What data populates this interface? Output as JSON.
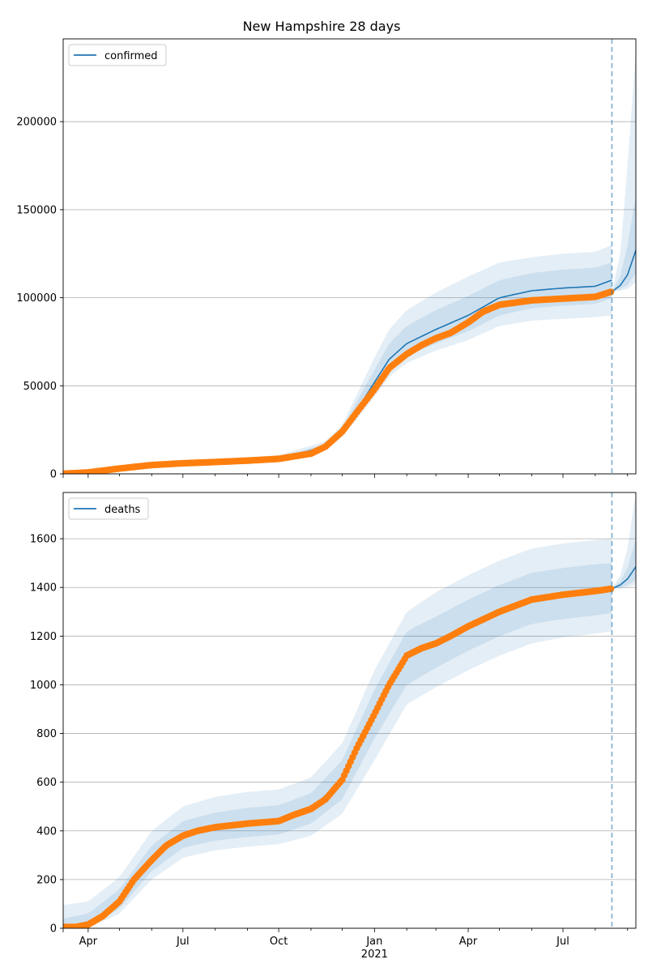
{
  "figure": {
    "title": "New Hampshire 28 days"
  },
  "chart_data": [
    {
      "type": "line",
      "legend": {
        "label": "confirmed",
        "placement": "top-left"
      },
      "xlim": [
        "2020-03-08",
        "2021-09-09"
      ],
      "ylim": [
        0,
        247000
      ],
      "yticks": [
        0,
        50000,
        100000,
        150000,
        200000
      ],
      "ytick_labels": [
        "0",
        "50000",
        "100000",
        "150000",
        "200000"
      ],
      "grid": "y",
      "forecast_start": "2021-08-17",
      "colors": {
        "line": "#1f77b4",
        "band": "#1f77b4",
        "observed": "#ff7f0e",
        "forecast_marker": "#1f77b4"
      },
      "observed": {
        "x": [
          "2020-03-08",
          "2020-04-01",
          "2020-05-01",
          "2020-06-01",
          "2020-07-01",
          "2020-08-01",
          "2020-09-01",
          "2020-10-01",
          "2020-11-01",
          "2020-11-15",
          "2020-12-01",
          "2020-12-15",
          "2021-01-01",
          "2021-01-15",
          "2021-02-01",
          "2021-02-15",
          "2021-03-01",
          "2021-03-15",
          "2021-04-01",
          "2021-04-15",
          "2021-05-01",
          "2021-06-01",
          "2021-07-01",
          "2021-08-01",
          "2021-08-17"
        ],
        "y": [
          100,
          800,
          3000,
          5000,
          6000,
          6700,
          7500,
          8500,
          11500,
          15500,
          24000,
          35000,
          48000,
          60000,
          68000,
          73000,
          77000,
          80000,
          86000,
          92000,
          96000,
          98500,
          99500,
          100500,
          103500
        ]
      },
      "model": {
        "x": [
          "2020-03-08",
          "2020-06-01",
          "2020-10-01",
          "2020-11-15",
          "2020-12-01",
          "2020-12-15",
          "2021-01-01",
          "2021-01-15",
          "2021-02-01",
          "2021-03-01",
          "2021-04-01",
          "2021-05-01",
          "2021-06-01",
          "2021-07-01",
          "2021-08-01",
          "2021-08-17"
        ],
        "y": [
          100,
          5000,
          8500,
          15500,
          24000,
          36000,
          52000,
          65000,
          74000,
          82000,
          90000,
          100000,
          104000,
          105500,
          106500,
          110000
        ],
        "bands": [
          {
            "lower": [
              0,
              4000,
              7500,
              14000,
              21000,
              31000,
              44000,
              55000,
              63000,
              70000,
              76000,
              84000,
              87000,
              88000,
              89000,
              90000
            ],
            "upper": [
              300,
              6500,
              10500,
              18500,
              28000,
              45000,
              66000,
              82000,
              93000,
              103000,
              112000,
              120000,
              123000,
              125000,
              126000,
              130000
            ]
          },
          {
            "lower": [
              0,
              4500,
              8000,
              14500,
              22000,
              33000,
              47000,
              58000,
              67000,
              74000,
              81000,
              90000,
              94000,
              95500,
              96500,
              100000
            ],
            "upper": [
              200,
              5700,
              9400,
              17000,
              26000,
              41000,
              59000,
              74000,
              84000,
              93000,
              101000,
              110000,
              114000,
              116000,
              117000,
              120000
            ]
          }
        ]
      },
      "forecast": {
        "x": [
          "2021-08-17",
          "2021-08-25",
          "2021-09-01",
          "2021-09-09"
        ],
        "y": [
          103500,
          107000,
          113000,
          127000
        ],
        "bands": [
          {
            "lower": [
              103500,
              104000,
              105000,
              109000
            ],
            "upper": [
              103500,
              125000,
              175000,
              240000
            ]
          },
          {
            "lower": [
              103500,
              105000,
              107000,
              114000
            ],
            "upper": [
              103500,
              112000,
              130000,
              158000
            ]
          }
        ]
      }
    },
    {
      "type": "line",
      "legend": {
        "label": "deaths",
        "placement": "top-left"
      },
      "xlim": [
        "2020-03-08",
        "2021-09-09"
      ],
      "ylim": [
        0,
        1790
      ],
      "yticks": [
        0,
        200,
        400,
        600,
        800,
        1000,
        1200,
        1400,
        1600
      ],
      "ytick_labels": [
        "0",
        "200",
        "400",
        "600",
        "800",
        "1000",
        "1200",
        "1400",
        "1600"
      ],
      "xticks": [
        "2020-04-01",
        "2020-07-01",
        "2020-10-01",
        "2021-01-01",
        "2021-04-01",
        "2021-07-01"
      ],
      "xtick_labels": [
        "Apr",
        "Jul",
        "Oct",
        "Jan",
        "Apr",
        "Jul"
      ],
      "xtick_year_label": "2021",
      "grid": "y",
      "forecast_start": "2021-08-17",
      "colors": {
        "line": "#1f77b4",
        "band": "#1f77b4",
        "observed": "#ff7f0e",
        "forecast_marker": "#1f77b4"
      },
      "observed": {
        "x": [
          "2020-03-08",
          "2020-03-20",
          "2020-04-01",
          "2020-04-15",
          "2020-05-01",
          "2020-05-15",
          "2020-06-01",
          "2020-06-15",
          "2020-07-01",
          "2020-07-15",
          "2020-08-01",
          "2020-09-01",
          "2020-10-01",
          "2020-10-15",
          "2020-11-01",
          "2020-11-15",
          "2020-12-01",
          "2020-12-15",
          "2021-01-01",
          "2021-01-15",
          "2021-02-01",
          "2021-02-15",
          "2021-03-01",
          "2021-03-15",
          "2021-04-01",
          "2021-05-01",
          "2021-06-01",
          "2021-07-01",
          "2021-08-01",
          "2021-08-17"
        ],
        "y": [
          5,
          5,
          15,
          50,
          110,
          200,
          280,
          340,
          380,
          400,
          415,
          430,
          440,
          465,
          490,
          530,
          610,
          740,
          880,
          1000,
          1120,
          1150,
          1170,
          1200,
          1240,
          1300,
          1350,
          1370,
          1385,
          1395
        ]
      },
      "model": {
        "x": [
          "2020-03-08",
          "2020-04-01",
          "2020-05-01",
          "2020-06-01",
          "2020-07-01",
          "2020-08-01",
          "2020-09-01",
          "2020-10-01",
          "2020-11-01",
          "2020-12-01",
          "2021-01-01",
          "2021-02-01",
          "2021-03-01",
          "2021-04-01",
          "2021-05-01",
          "2021-06-01",
          "2021-07-01",
          "2021-08-01",
          "2021-08-17"
        ],
        "y": [
          5,
          15,
          110,
          280,
          380,
          415,
          430,
          440,
          490,
          610,
          880,
          1110,
          1170,
          1240,
          1300,
          1350,
          1370,
          1385,
          1395
        ],
        "bands": [
          {
            "lower": [
              0,
              0,
              60,
              200,
              290,
              320,
              335,
              345,
              380,
              470,
              690,
              920,
              990,
              1060,
              1120,
              1170,
              1195,
              1210,
              1220
            ],
            "upper": [
              95,
              110,
              210,
              400,
              500,
              540,
              560,
              570,
              620,
              760,
              1060,
              1300,
              1380,
              1450,
              1510,
              1560,
              1580,
              1595,
              1600
            ]
          },
          {
            "lower": [
              0,
              5,
              80,
              235,
              330,
              360,
              375,
              385,
              430,
              530,
              780,
              1000,
              1070,
              1140,
              1200,
              1250,
              1270,
              1285,
              1295
            ],
            "upper": [
              40,
              60,
              160,
              340,
              440,
              475,
              495,
              505,
              555,
              690,
              980,
              1220,
              1280,
              1350,
              1410,
              1460,
              1480,
              1495,
              1500
            ]
          }
        ]
      },
      "forecast": {
        "x": [
          "2021-08-17",
          "2021-08-25",
          "2021-09-01",
          "2021-09-09"
        ],
        "y": [
          1395,
          1410,
          1435,
          1485
        ],
        "bands": [
          {
            "lower": [
              1395,
              1395,
              1400,
              1410
            ],
            "upper": [
              1395,
              1450,
              1560,
              1790
            ]
          },
          {
            "lower": [
              1395,
              1400,
              1410,
              1430
            ],
            "upper": [
              1395,
              1425,
              1480,
              1600
            ]
          }
        ]
      }
    }
  ]
}
